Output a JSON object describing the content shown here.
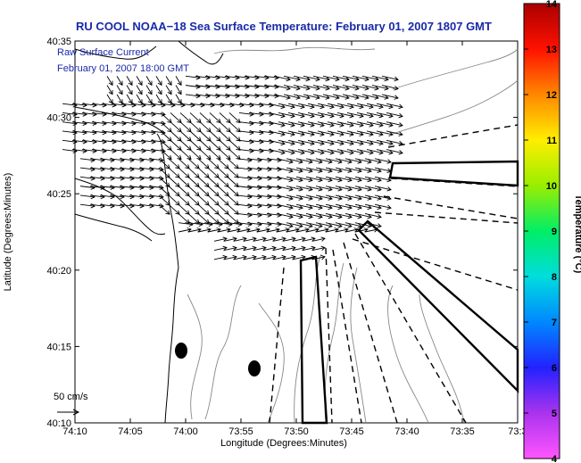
{
  "chart_data": {
    "type": "scatter",
    "title": "RU COOL  NOAA−18  Sea Surface Temperature:  February 01, 2007 1807 GMT",
    "xlabel": "Longitude (Degrees:Minutes)",
    "ylabel": "Latitude (Degrees:Minutes)",
    "x_ticks": [
      "74:10",
      "74:05",
      "74:00",
      "73:55",
      "73:50",
      "73:45",
      "73:40",
      "73:35",
      "73:3"
    ],
    "y_ticks": [
      "40:10",
      "40:15",
      "40:20",
      "40:25",
      "40:30",
      "40:35"
    ],
    "xlim": [
      -74.1667,
      -73.5
    ],
    "ylim": [
      40.1667,
      40.5833
    ],
    "legend": {
      "line1": "Raw Surface Current",
      "line2": "February 01, 2007 18:00 GMT"
    },
    "scale_label": "50 cm/s",
    "colorbar": {
      "label": "Temperature (°C)",
      "ticks": [
        "4",
        "5",
        "6",
        "7",
        "8",
        "9",
        "10",
        "11",
        "12",
        "13",
        "14"
      ],
      "range": [
        4,
        14
      ],
      "colors": [
        "#ff55ff",
        "#aa33ee",
        "#2222ff",
        "#0088ff",
        "#00dddd",
        "#00ee66",
        "#99ee00",
        "#ffee00",
        "#ff8800",
        "#ff1100",
        "#aa0000"
      ]
    },
    "grid": false,
    "current_field": {
      "rows_lat": [
        40.545,
        40.535,
        40.525,
        40.515,
        40.505,
        40.495,
        40.485,
        40.475,
        40.465,
        40.455,
        40.445,
        40.435,
        40.425,
        40.415,
        40.405,
        40.395,
        40.385,
        40.375,
        40.365,
        40.355,
        40.345
      ],
      "note": "vectors generally flow eastward/southeastward"
    },
    "markers": [
      {
        "lon": -73.9833,
        "lat": 40.2567
      },
      {
        "lon": -73.9467,
        "lat": 40.2417
      }
    ]
  }
}
